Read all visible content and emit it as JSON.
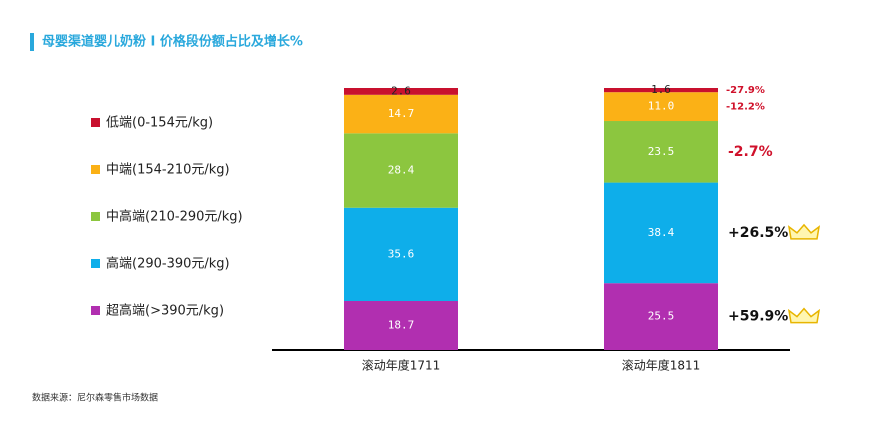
{
  "chart_data": {
    "type": "stacked-bar",
    "title": "母婴渠道婴儿奶粉 I 价格段份额占比及增长%",
    "source": "数据来源：尼尔森零售市场数据",
    "categories": [
      "滚动年度1711",
      "滚动年度1811"
    ],
    "ylim": [
      0,
      100
    ],
    "series": [
      {
        "name": "低端(0-154元/kg)",
        "color": "#c8102e",
        "values": [
          2.6,
          1.6
        ],
        "growth": "-27.9%"
      },
      {
        "name": "中端(154-210元/kg)",
        "color": "#fbb116",
        "values": [
          14.7,
          11.0
        ],
        "value_labels": [
          "14.7",
          "11.0"
        ],
        "growth": "-12.2%"
      },
      {
        "name": "中高端(210-290元/kg)",
        "color": "#8cc63f",
        "values": [
          28.4,
          23.5
        ],
        "growth": "-2.7%"
      },
      {
        "name": "高端(290-390元/kg)",
        "color": "#0eaeea",
        "values": [
          35.6,
          38.4
        ],
        "growth": "+26.5%"
      },
      {
        "name": "超高端(>390元/kg)",
        "color": "#b12fb0",
        "values": [
          18.7,
          25.5
        ],
        "growth": "+59.9%"
      }
    ]
  }
}
